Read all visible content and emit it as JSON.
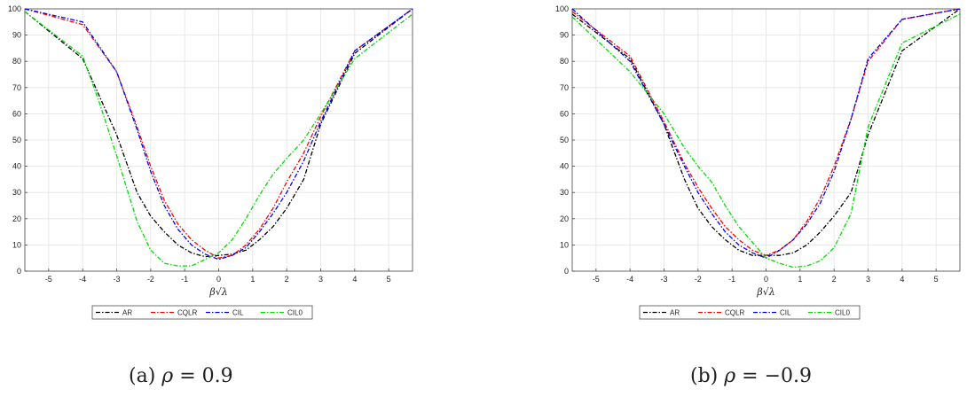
{
  "colors": {
    "AR": "#000000",
    "CQLR": "#ff0000",
    "CIL": "#0000ff",
    "CIL0": "#00dd00"
  },
  "chart_data": [
    {
      "type": "line",
      "xlabel": "β√λ",
      "xlim": [
        -5.7,
        5.7
      ],
      "ylim": [
        0,
        100
      ],
      "xticks": [
        -5,
        -4,
        -3,
        -2,
        -1,
        0,
        1,
        2,
        3,
        4,
        5
      ],
      "yticks": [
        0,
        10,
        20,
        30,
        40,
        50,
        60,
        70,
        80,
        90,
        100
      ],
      "grid": true,
      "legend": "bottom",
      "caption": {
        "label": "(a)",
        "symbol": "ρ",
        "rest": " = 0.9"
      },
      "series": [
        {
          "name": "AR",
          "x": [
            -5.7,
            -4,
            -3,
            -2.4,
            -2,
            -1.6,
            -1.2,
            -0.8,
            -0.4,
            0,
            0.4,
            0.8,
            1.2,
            1.6,
            2,
            2.5,
            3,
            4,
            5.7
          ],
          "y": [
            99,
            81,
            52,
            30,
            21,
            15,
            10,
            7,
            5.5,
            6,
            6.5,
            8,
            12,
            17,
            24,
            35,
            56,
            83,
            100
          ]
        },
        {
          "name": "CQLR",
          "x": [
            -5.7,
            -4,
            -3,
            -2.4,
            -2,
            -1.6,
            -1.2,
            -0.8,
            -0.4,
            0,
            0.4,
            0.8,
            1.2,
            1.6,
            2,
            2.5,
            3,
            4,
            5.7
          ],
          "y": [
            100,
            94,
            76,
            55,
            40,
            27,
            18,
            12,
            8,
            5,
            6,
            10,
            16,
            24,
            34,
            45,
            59,
            84,
            100
          ]
        },
        {
          "name": "CIL",
          "x": [
            -5.7,
            -4,
            -3,
            -2.4,
            -2,
            -1.6,
            -1.2,
            -0.8,
            -0.4,
            0,
            0.4,
            0.8,
            1.2,
            1.6,
            2,
            2.5,
            3,
            4,
            5.7
          ],
          "y": [
            100,
            95,
            76,
            54,
            38,
            25,
            16,
            10,
            6.5,
            4.5,
            6,
            9,
            15,
            22,
            30,
            42,
            57,
            84,
            100
          ]
        },
        {
          "name": "CIL0",
          "x": [
            -5.7,
            -4,
            -3.5,
            -3,
            -2.4,
            -2,
            -1.6,
            -1.2,
            -0.8,
            -0.4,
            0,
            0.4,
            0.8,
            1.2,
            1.6,
            2,
            2.5,
            3,
            4,
            5.7
          ],
          "y": [
            99,
            82,
            64,
            44,
            19,
            8,
            3,
            2,
            2,
            4.5,
            7,
            12,
            20,
            29,
            37,
            43,
            50,
            60,
            81,
            98
          ]
        }
      ]
    },
    {
      "type": "line",
      "xlabel": "β√λ",
      "xlim": [
        -5.7,
        5.7
      ],
      "ylim": [
        0,
        100
      ],
      "xticks": [
        -5,
        -4,
        -3,
        -2,
        -1,
        0,
        1,
        2,
        3,
        4,
        5
      ],
      "yticks": [
        0,
        10,
        20,
        30,
        40,
        50,
        60,
        70,
        80,
        90,
        100
      ],
      "grid": true,
      "legend": "bottom",
      "caption": {
        "label": "(b)",
        "symbol": "ρ",
        "rest": " = −0.9"
      },
      "series": [
        {
          "name": "AR",
          "x": [
            -5.7,
            -4,
            -3,
            -2.4,
            -2,
            -1.6,
            -1.2,
            -0.8,
            -0.4,
            0,
            0.4,
            0.8,
            1.2,
            1.6,
            2,
            2.5,
            3,
            4,
            5.7
          ],
          "y": [
            98,
            81,
            56,
            35,
            24,
            17,
            12,
            8,
            6,
            6,
            6,
            7,
            10,
            15,
            21,
            30,
            52,
            84,
            100
          ]
        },
        {
          "name": "CQLR",
          "x": [
            -5.7,
            -4,
            -3,
            -2.4,
            -2,
            -1.6,
            -1.2,
            -0.8,
            -0.4,
            0,
            0.4,
            0.8,
            1.2,
            1.6,
            2,
            2.5,
            3,
            4,
            5.7
          ],
          "y": [
            99,
            82,
            57,
            41,
            32,
            24,
            17,
            12,
            8,
            6,
            8,
            12,
            19,
            28,
            40,
            58,
            80,
            96,
            100
          ]
        },
        {
          "name": "CIL",
          "x": [
            -5.7,
            -4,
            -3,
            -2.4,
            -2,
            -1.6,
            -1.2,
            -0.8,
            -0.4,
            0,
            0.4,
            0.8,
            1.2,
            1.6,
            2,
            2.5,
            3,
            4,
            5.7
          ],
          "y": [
            100,
            80,
            56,
            40,
            30,
            22,
            15,
            10,
            7,
            5,
            8,
            12,
            18,
            26,
            38,
            58,
            81,
            96,
            100
          ]
        },
        {
          "name": "CIL0",
          "x": [
            -5.7,
            -4,
            -3,
            -2.4,
            -2,
            -1.6,
            -1.2,
            -0.8,
            -0.4,
            0,
            0.4,
            0.8,
            1.2,
            1.6,
            2,
            2.5,
            3,
            4,
            5.7
          ],
          "y": [
            97,
            76,
            60,
            47,
            40,
            34,
            25,
            17,
            11,
            5,
            3,
            1.5,
            2,
            4,
            9,
            22,
            55,
            87,
            98
          ]
        }
      ]
    }
  ]
}
